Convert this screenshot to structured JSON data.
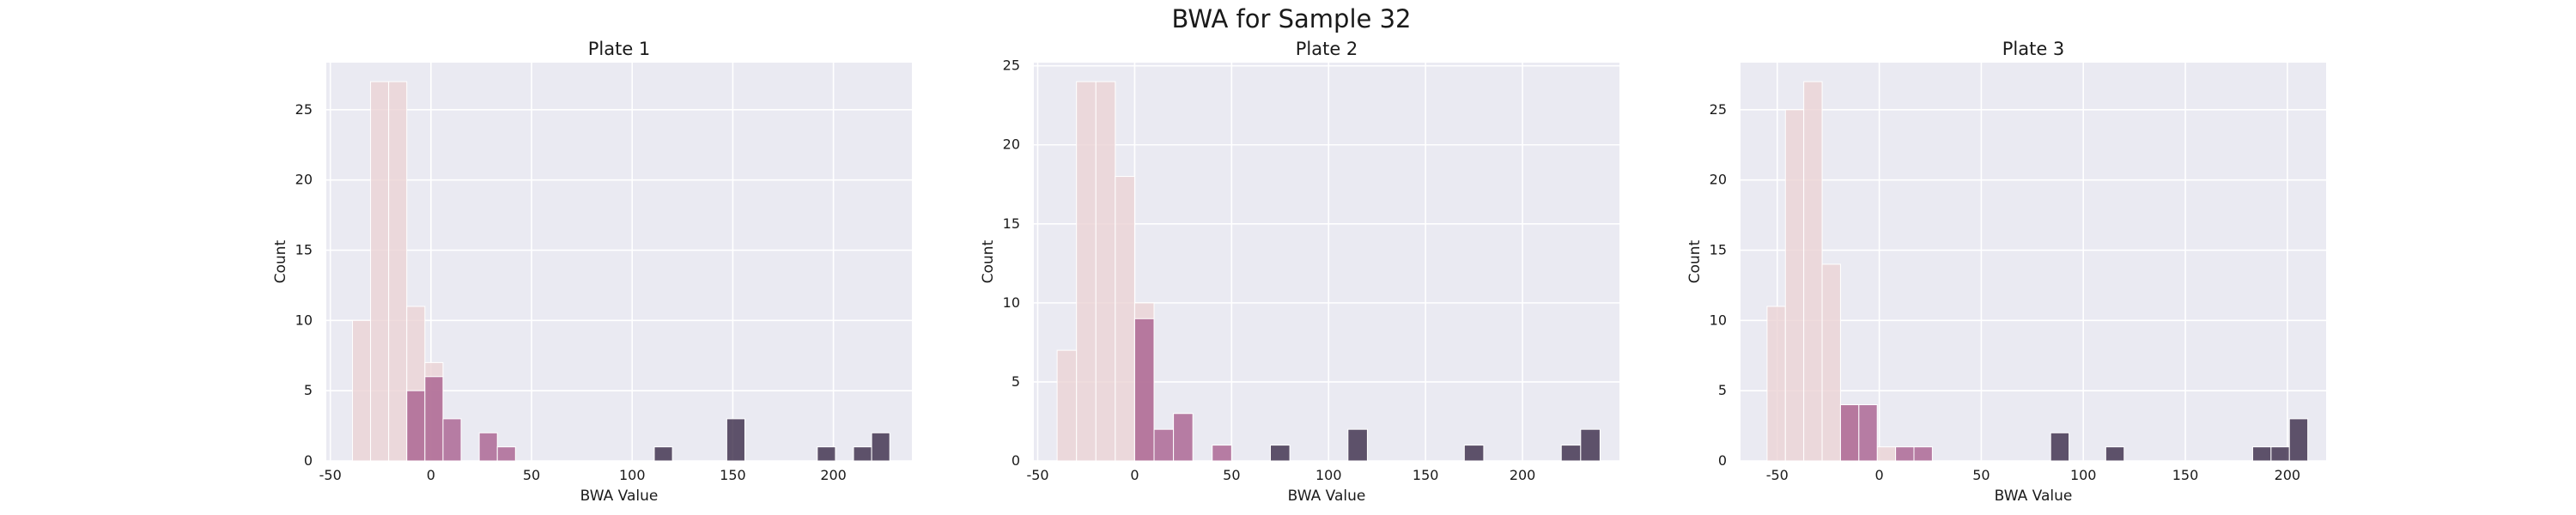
{
  "title": "BWA for Sample 32",
  "colors": {
    "background": "#eaeaf2",
    "grid": "#ffffff",
    "hue": [
      "#ebd3d4",
      "#a9608f",
      "#2e1e3c"
    ]
  },
  "chart_data": [
    {
      "type": "bar",
      "title": "Plate 1",
      "xlabel": "BWA Value",
      "ylabel": "Count",
      "xlim": [
        -52,
        239
      ],
      "ylim": [
        0,
        28.35
      ],
      "xticks": [
        "-50",
        "0",
        "50",
        "100",
        "150",
        "200"
      ],
      "yticks": [
        "0",
        "5",
        "10",
        "15",
        "20",
        "25"
      ],
      "grid": true,
      "series": [
        {
          "color": "#ebd3d4",
          "opacity": 0.8,
          "bars": [
            [
              -39,
              -30,
              10
            ],
            [
              -30,
              -21,
              27
            ],
            [
              -21,
              -12,
              27
            ],
            [
              -12,
              -3,
              11
            ],
            [
              -3,
              6,
              7
            ]
          ]
        },
        {
          "color": "#a9608f",
          "opacity": 0.8,
          "bars": [
            [
              -12,
              -3,
              5
            ],
            [
              -3,
              6,
              6
            ],
            [
              6,
              15,
              3
            ],
            [
              24,
              33,
              2
            ],
            [
              33,
              42,
              1
            ]
          ]
        },
        {
          "color": "#2e1e3c",
          "opacity": 0.75,
          "bars": [
            [
              111,
              120,
              1
            ],
            [
              147,
              156,
              3
            ],
            [
              192,
              201,
              1
            ],
            [
              210,
              219,
              1
            ],
            [
              219,
              228,
              2
            ]
          ]
        }
      ]
    },
    {
      "type": "bar",
      "title": "Plate 2",
      "xlabel": "BWA Value",
      "ylabel": "Count",
      "xlim": [
        -52,
        250
      ],
      "ylim": [
        0,
        25.2
      ],
      "xticks": [
        "-50",
        "0",
        "50",
        "100",
        "150",
        "200"
      ],
      "yticks": [
        "0",
        "5",
        "10",
        "15",
        "20",
        "25"
      ],
      "grid": true,
      "series": [
        {
          "color": "#ebd3d4",
          "opacity": 0.8,
          "bars": [
            [
              -40,
              -30,
              7
            ],
            [
              -30,
              -20,
              24
            ],
            [
              -20,
              -10,
              24
            ],
            [
              -10,
              0,
              18
            ],
            [
              0,
              10,
              10
            ]
          ]
        },
        {
          "color": "#a9608f",
          "opacity": 0.8,
          "bars": [
            [
              0,
              10,
              9
            ],
            [
              10,
              20,
              2
            ],
            [
              20,
              30,
              3
            ],
            [
              40,
              50,
              1
            ]
          ]
        },
        {
          "color": "#2e1e3c",
          "opacity": 0.75,
          "bars": [
            [
              70,
              80,
              1
            ],
            [
              110,
              120,
              2
            ],
            [
              170,
              180,
              1
            ],
            [
              220,
              230,
              1
            ],
            [
              230,
              240,
              2
            ]
          ]
        }
      ]
    },
    {
      "type": "bar",
      "title": "Plate 3",
      "xlabel": "BWA Value",
      "ylabel": "Count",
      "xlim": [
        -68,
        219
      ],
      "ylim": [
        0,
        28.35
      ],
      "xticks": [
        "-50",
        "0",
        "50",
        "100",
        "150",
        "200"
      ],
      "yticks": [
        "0",
        "5",
        "10",
        "15",
        "20",
        "25"
      ],
      "grid": true,
      "series": [
        {
          "color": "#ebd3d4",
          "opacity": 0.8,
          "bars": [
            [
              -55,
              -46,
              11
            ],
            [
              -46,
              -37,
              25
            ],
            [
              -37,
              -28,
              27
            ],
            [
              -28,
              -19,
              14
            ],
            [
              -19,
              -10,
              4
            ],
            [
              -1,
              8,
              1
            ]
          ]
        },
        {
          "color": "#a9608f",
          "opacity": 0.8,
          "bars": [
            [
              -19,
              -10,
              4
            ],
            [
              -10,
              -1,
              4
            ],
            [
              8,
              17,
              1
            ],
            [
              17,
              26,
              1
            ]
          ]
        },
        {
          "color": "#2e1e3c",
          "opacity": 0.75,
          "bars": [
            [
              84,
              93,
              2
            ],
            [
              111,
              120,
              1
            ],
            [
              183,
              192,
              1
            ],
            [
              192,
              201,
              1
            ],
            [
              201,
              210,
              3
            ]
          ]
        }
      ]
    }
  ]
}
